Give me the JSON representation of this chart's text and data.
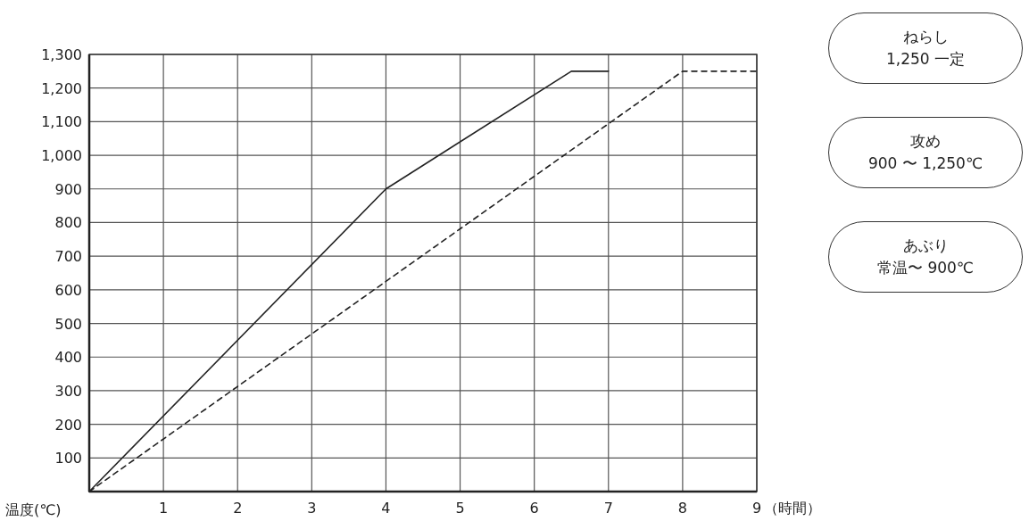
{
  "chart_data": {
    "type": "line",
    "xlabel": "（時間）",
    "ylabel": "温度(℃)",
    "xlim": [
      0,
      9
    ],
    "ylim": [
      0,
      1300
    ],
    "xticks": [
      1,
      2,
      3,
      4,
      5,
      6,
      7,
      8,
      9
    ],
    "yticks": [
      100,
      200,
      300,
      400,
      500,
      600,
      700,
      800,
      900,
      {
        "value": 1000,
        "label": "1,000"
      },
      {
        "value": 1100,
        "label": "1,100"
      },
      {
        "value": 1200,
        "label": "1,200"
      },
      {
        "value": 1300,
        "label": "1,300"
      }
    ],
    "grid": true,
    "marker": "none",
    "series": [
      {
        "color": "#222222",
        "line_style": "solid",
        "x": [
          0,
          4,
          6.5,
          7
        ],
        "values": [
          0,
          900,
          1250,
          1250
        ]
      },
      {
        "color": "#222222",
        "line_style": "dashed",
        "x": [
          0,
          8,
          9
        ],
        "values": [
          0,
          1250,
          1250
        ]
      }
    ],
    "annotations": [
      "ねらし",
      "1,250 一定",
      "攻め",
      "900 〜 1,250℃",
      "あぶり",
      "常温〜 900℃"
    ]
  }
}
